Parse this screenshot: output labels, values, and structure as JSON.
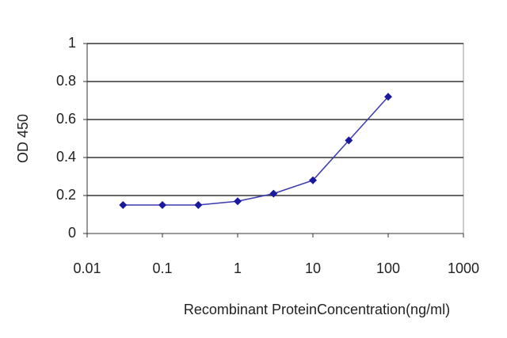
{
  "chart_data": {
    "type": "line",
    "x_label": "Recombinant ProteinConcentration(ng/ml)",
    "y_label": "OD 450",
    "x": [
      0.03,
      0.1,
      0.3,
      1,
      3,
      10,
      30,
      100
    ],
    "series": [
      {
        "color": "#1a1aa0",
        "values": [
          0.15,
          0.15,
          0.15,
          0.17,
          0.21,
          0.28,
          0.49,
          0.72
        ]
      }
    ],
    "xscale": "log",
    "xlim": [
      0.01,
      1000
    ],
    "xticks": [
      0.01,
      0.1,
      1,
      10,
      100,
      1000
    ],
    "ylim": [
      0,
      1
    ],
    "yticks": [
      0,
      0.2,
      0.4,
      0.6,
      0.8,
      1
    ],
    "grid": true
  }
}
